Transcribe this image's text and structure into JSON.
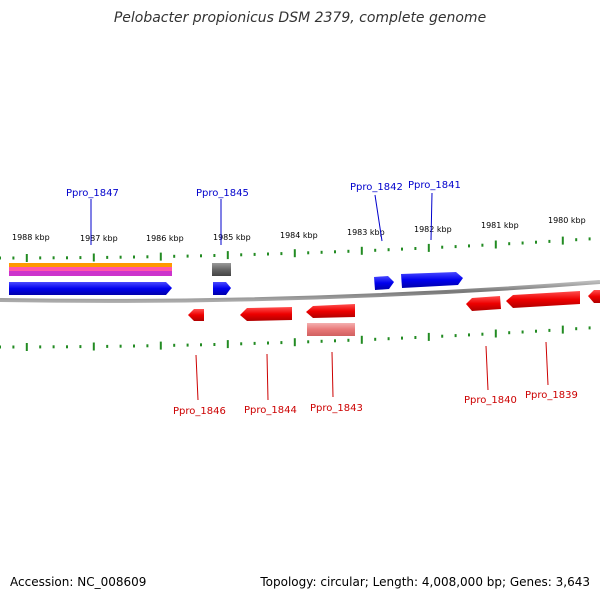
{
  "title": "Pelobacter propionicus DSM 2379, complete genome",
  "footer": {
    "accession": "Accession: NC_008609",
    "summary": "Topology: circular; Length: 4,008,000 bp; Genes: 3,643"
  },
  "colors": {
    "forward_gene": "#0000ee",
    "reverse_gene": "#ee0000",
    "backbone": "#888888",
    "tick": "#228b22"
  },
  "scale_labels": [
    "1988 kbp",
    "1987 kbp",
    "1986 kbp",
    "1985 kbp",
    "1984 kbp",
    "1983 kbp",
    "1982 kbp",
    "1981 kbp",
    "1980 kbp"
  ],
  "forward_labels": [
    "Ppro_1847",
    "Ppro_1845",
    "Ppro_1842",
    "Ppro_1841"
  ],
  "reverse_labels": [
    "Ppro_1846",
    "Ppro_1844",
    "Ppro_1843",
    "Ppro_1840",
    "Ppro_1839"
  ]
}
